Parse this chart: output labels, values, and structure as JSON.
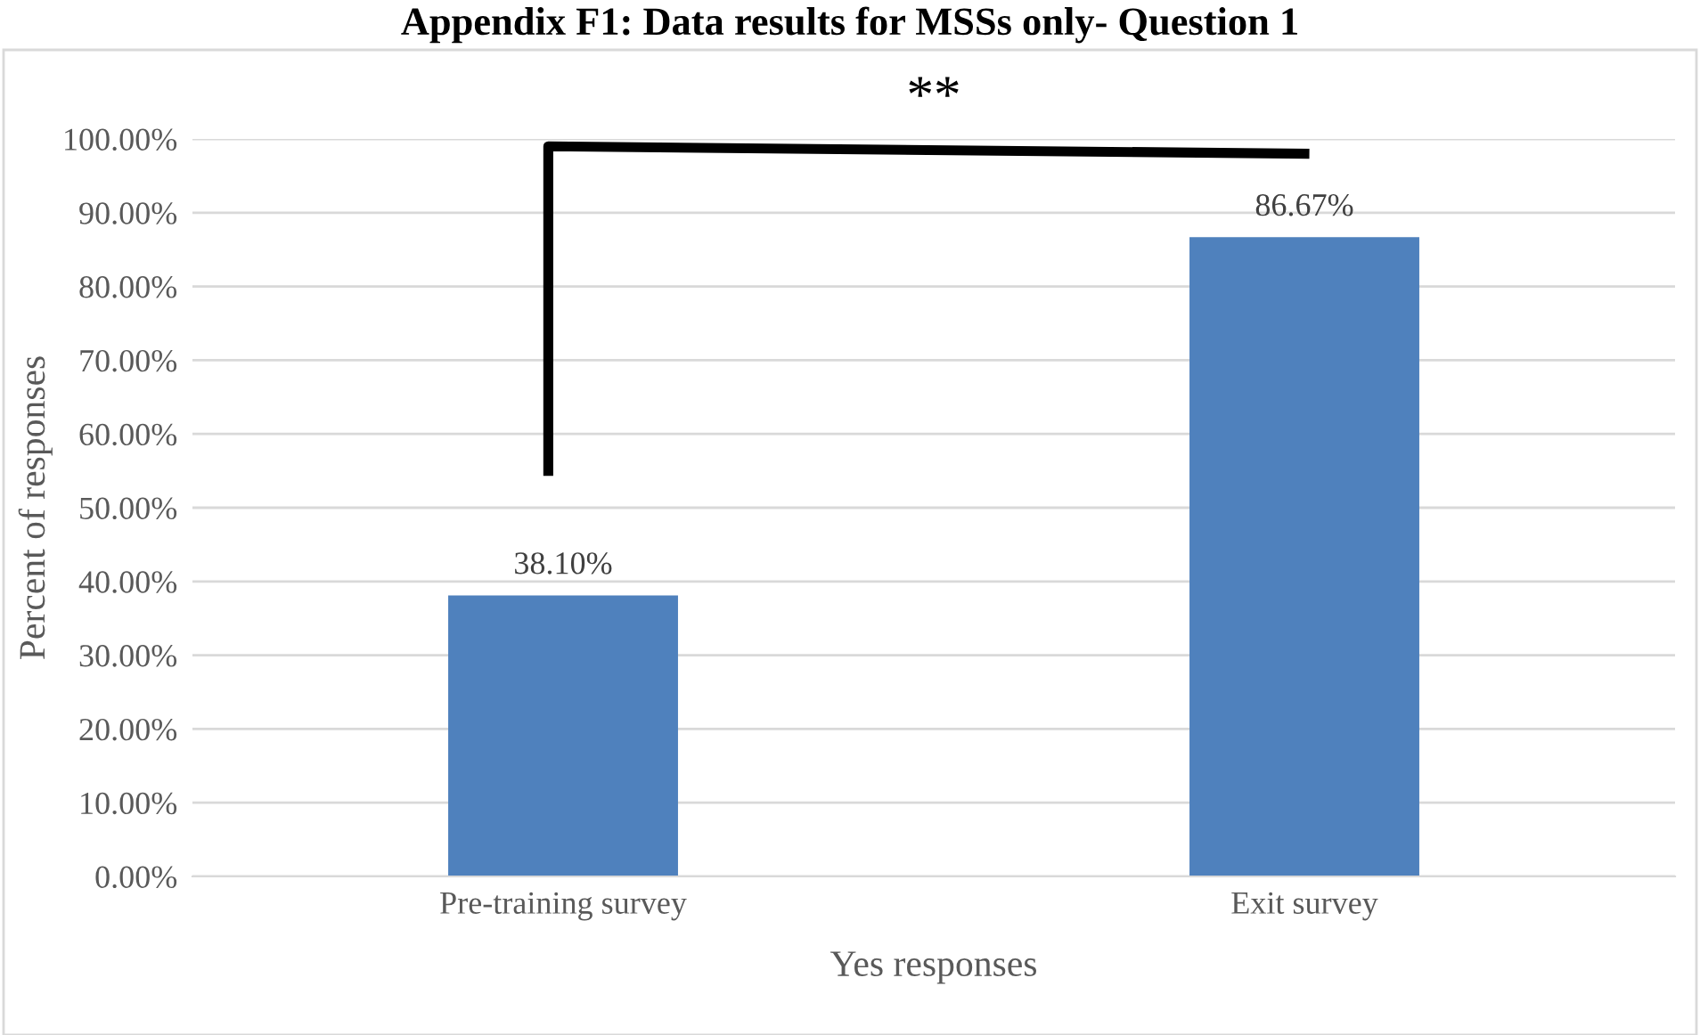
{
  "chart_data": {
    "type": "bar",
    "title": "Appendix F1: Data results for MSSs only- Question 1",
    "xlabel": "Yes responses",
    "ylabel": "Percent of responses",
    "categories": [
      "Pre-training survey",
      "Exit survey"
    ],
    "values": [
      38.1,
      86.67
    ],
    "color": "#4f81bd",
    "value_labels": [
      "38.10%",
      "86.67%"
    ],
    "ylim": [
      0,
      100
    ],
    "yticks": [
      {
        "value": 0,
        "label": "0.00%"
      },
      {
        "value": 10,
        "label": "10.00%"
      },
      {
        "value": 20,
        "label": "20.00%"
      },
      {
        "value": 30,
        "label": "30.00%"
      },
      {
        "value": 40,
        "label": "40.00%"
      },
      {
        "value": 50,
        "label": "50.00%"
      },
      {
        "value": 60,
        "label": "60.00%"
      },
      {
        "value": 70,
        "label": "70.00%"
      },
      {
        "value": 80,
        "label": "80.00%"
      },
      {
        "value": 90,
        "label": "90.00%"
      },
      {
        "value": 100,
        "label": "100.00%"
      }
    ],
    "grid": "y",
    "legend": false,
    "annotations": [
      "**"
    ]
  }
}
